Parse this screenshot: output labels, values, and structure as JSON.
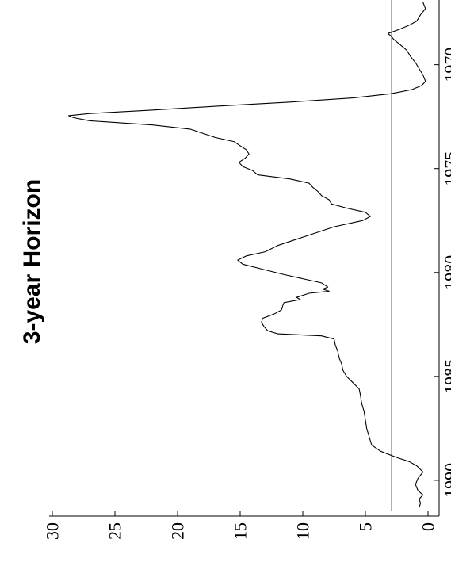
{
  "chart_data": {
    "type": "line",
    "orientation": "rotated-90-clockwise",
    "title": "3-year Horizon",
    "xlabel": "",
    "ylabel": "",
    "xlim": [
      1967.0,
      1991.3
    ],
    "ylim": [
      0,
      30
    ],
    "x_ticks": [
      1970,
      1975,
      1980,
      1985,
      1990
    ],
    "x_tick_labels": [
      "1970",
      "1975",
      "1980",
      "1985",
      "1990"
    ],
    "y_ticks": [
      0,
      5,
      10,
      15,
      20,
      25,
      30
    ],
    "y_tick_labels": [
      "0",
      "5",
      "10",
      "15",
      "20",
      "25",
      "30"
    ],
    "reference_line": {
      "y": 2.9
    },
    "grid": false,
    "series": [
      {
        "values": [
          [
            1967.0,
            0.4
          ],
          [
            1967.3,
            0.2
          ],
          [
            1967.6,
            0.6
          ],
          [
            1967.9,
            0.9
          ],
          [
            1968.1,
            1.5
          ],
          [
            1968.3,
            2.3
          ],
          [
            1968.5,
            3.2
          ],
          [
            1968.6,
            3.0
          ],
          [
            1968.8,
            2.7
          ],
          [
            1969.0,
            2.3
          ],
          [
            1969.3,
            1.7
          ],
          [
            1969.6,
            1.4
          ],
          [
            1969.9,
            1.0
          ],
          [
            1970.2,
            0.7
          ],
          [
            1970.5,
            0.4
          ],
          [
            1970.8,
            0.2
          ],
          [
            1971.0,
            0.5
          ],
          [
            1971.2,
            1.3
          ],
          [
            1971.4,
            3.0
          ],
          [
            1971.6,
            6.0
          ],
          [
            1971.8,
            11.0
          ],
          [
            1972.0,
            17.0
          ],
          [
            1972.2,
            22.5
          ],
          [
            1972.35,
            27.0
          ],
          [
            1972.45,
            28.7
          ],
          [
            1972.55,
            28.3
          ],
          [
            1972.7,
            27.0
          ],
          [
            1972.9,
            22.0
          ],
          [
            1973.1,
            19.0
          ],
          [
            1973.3,
            18.0
          ],
          [
            1973.5,
            17.0
          ],
          [
            1973.7,
            15.5
          ],
          [
            1973.9,
            15.0
          ],
          [
            1974.1,
            14.5
          ],
          [
            1974.3,
            14.3
          ],
          [
            1974.5,
            14.6
          ],
          [
            1974.7,
            15.1
          ],
          [
            1974.9,
            14.8
          ],
          [
            1975.1,
            14.0
          ],
          [
            1975.3,
            13.6
          ],
          [
            1975.5,
            11.0
          ],
          [
            1975.7,
            9.5
          ],
          [
            1975.9,
            9.2
          ],
          [
            1976.1,
            8.8
          ],
          [
            1976.3,
            8.5
          ],
          [
            1976.5,
            7.9
          ],
          [
            1976.7,
            7.7
          ],
          [
            1976.9,
            6.5
          ],
          [
            1977.1,
            5.0
          ],
          [
            1977.3,
            4.6
          ],
          [
            1977.5,
            5.2
          ],
          [
            1977.8,
            7.5
          ],
          [
            1978.1,
            9.0
          ],
          [
            1978.4,
            10.5
          ],
          [
            1978.7,
            12.0
          ],
          [
            1979.0,
            13.0
          ],
          [
            1979.2,
            14.5
          ],
          [
            1979.4,
            15.2
          ],
          [
            1979.6,
            14.8
          ],
          [
            1979.8,
            13.5
          ],
          [
            1980.1,
            11.5
          ],
          [
            1980.3,
            10.0
          ],
          [
            1980.5,
            8.5
          ],
          [
            1980.7,
            8.0
          ],
          [
            1980.8,
            8.4
          ],
          [
            1980.9,
            7.9
          ],
          [
            1981.0,
            9.5
          ],
          [
            1981.2,
            10.5
          ],
          [
            1981.3,
            10.2
          ],
          [
            1981.45,
            11.5
          ],
          [
            1981.6,
            11.6
          ],
          [
            1981.8,
            11.7
          ],
          [
            1982.0,
            12.3
          ],
          [
            1982.2,
            13.2
          ],
          [
            1982.4,
            13.3
          ],
          [
            1982.6,
            13.1
          ],
          [
            1982.8,
            12.8
          ],
          [
            1982.95,
            12.0
          ],
          [
            1983.05,
            8.5
          ],
          [
            1983.2,
            7.5
          ],
          [
            1983.5,
            7.4
          ],
          [
            1983.8,
            7.2
          ],
          [
            1984.1,
            7.1
          ],
          [
            1984.4,
            6.9
          ],
          [
            1984.7,
            6.8
          ],
          [
            1985.0,
            6.5
          ],
          [
            1985.3,
            6.0
          ],
          [
            1985.6,
            5.5
          ],
          [
            1985.9,
            5.4
          ],
          [
            1986.3,
            5.3
          ],
          [
            1986.7,
            5.1
          ],
          [
            1987.1,
            5.0
          ],
          [
            1987.5,
            4.9
          ],
          [
            1987.9,
            4.7
          ],
          [
            1988.3,
            4.5
          ],
          [
            1988.6,
            3.8
          ],
          [
            1988.9,
            2.5
          ],
          [
            1989.1,
            1.5
          ],
          [
            1989.3,
            0.9
          ],
          [
            1989.6,
            0.4
          ],
          [
            1989.9,
            0.8
          ],
          [
            1990.2,
            1.0
          ],
          [
            1990.5,
            0.8
          ],
          [
            1990.7,
            0.4
          ],
          [
            1990.9,
            0.7
          ],
          [
            1991.1,
            0.6
          ],
          [
            1991.3,
            0.7
          ]
        ]
      }
    ]
  }
}
